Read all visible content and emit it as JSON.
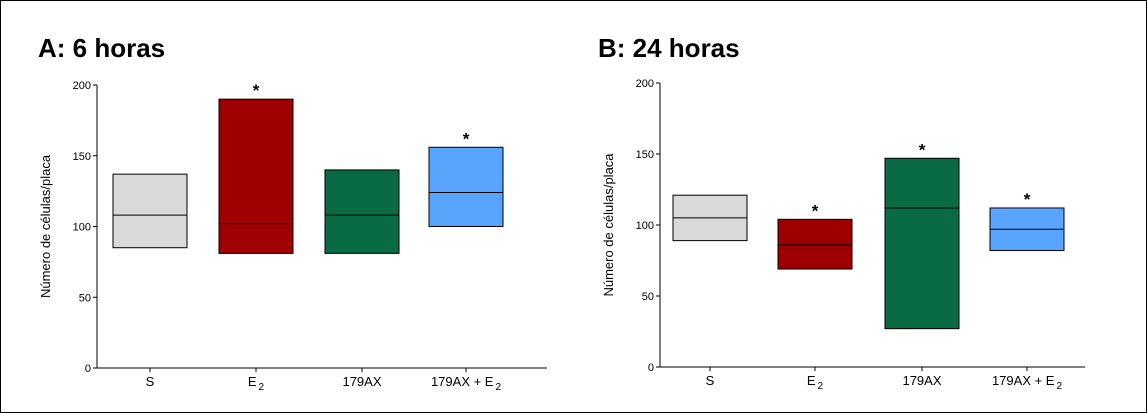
{
  "chart_data": [
    {
      "type": "box",
      "title": "A: 6 horas",
      "ylabel": "Número de células/placa",
      "ylim": [
        0,
        200
      ],
      "yticks": [
        "0",
        "50",
        "100",
        "150",
        "200"
      ],
      "categories": [
        {
          "main": "S",
          "sub": ""
        },
        {
          "main": "E",
          "sub": "2"
        },
        {
          "main": "179AX",
          "sub": ""
        },
        {
          "main": "179AX + E",
          "sub": "2"
        }
      ],
      "boxes": [
        {
          "low": 85,
          "median": 108,
          "high": 137,
          "color": "#d9d9d9",
          "significant": false,
          "marker": ""
        },
        {
          "low": 81,
          "median": 102,
          "high": 190,
          "color": "#9e0000",
          "significant": true,
          "marker": "*"
        },
        {
          "low": 81,
          "median": 108,
          "high": 140,
          "color": "#086b44",
          "significant": false,
          "marker": ""
        },
        {
          "low": 100,
          "median": 124,
          "high": 156,
          "color": "#59a4ff",
          "significant": true,
          "marker": "*"
        }
      ]
    },
    {
      "type": "box",
      "title": "B: 24 horas",
      "ylabel": "Número de células/placa",
      "ylim": [
        0,
        200
      ],
      "yticks": [
        "0",
        "50",
        "100",
        "150",
        "200"
      ],
      "categories": [
        {
          "main": "S",
          "sub": ""
        },
        {
          "main": "E",
          "sub": "2"
        },
        {
          "main": "179AX",
          "sub": ""
        },
        {
          "main": "179AX + E",
          "sub": "2"
        }
      ],
      "boxes": [
        {
          "low": 89,
          "median": 105,
          "high": 121,
          "color": "#d9d9d9",
          "significant": false,
          "marker": ""
        },
        {
          "low": 69,
          "median": 86,
          "high": 104,
          "color": "#9e0000",
          "significant": true,
          "marker": "*"
        },
        {
          "low": 27,
          "median": 112,
          "high": 147,
          "color": "#086b44",
          "significant": true,
          "marker": "*"
        },
        {
          "low": 82,
          "median": 97,
          "high": 112,
          "color": "#59a4ff",
          "significant": true,
          "marker": "*"
        }
      ]
    }
  ]
}
